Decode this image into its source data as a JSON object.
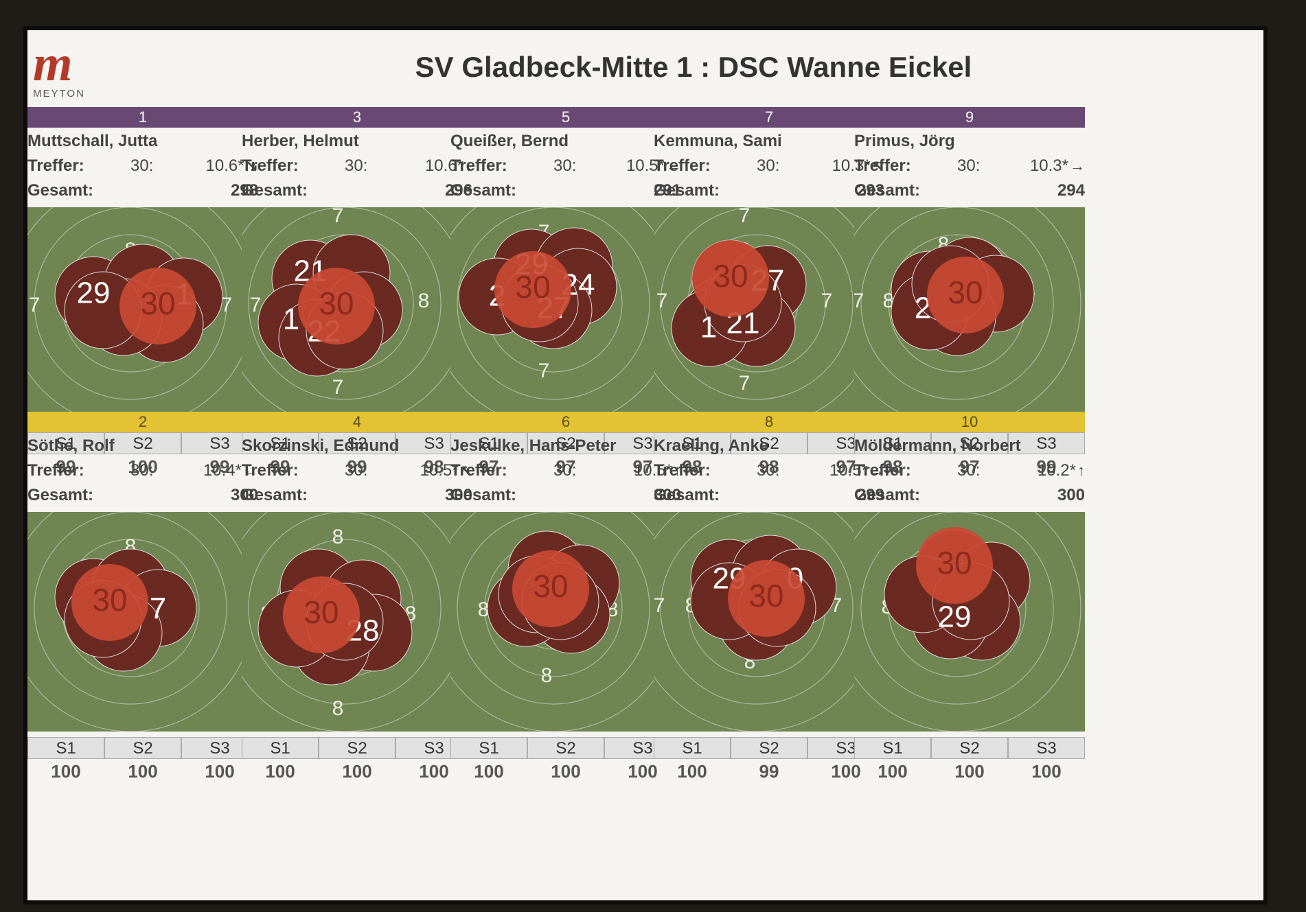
{
  "header": {
    "title": "SV Gladbeck-Mitte 1 : DSC Wanne Eickel",
    "logo_text": "MEYTON"
  },
  "labels": {
    "treffer": "Treffer:",
    "gesamt": "Gesamt:",
    "shots_prefix": "30:"
  },
  "series_headers": [
    "S1",
    "S2",
    "S3"
  ],
  "colors": {
    "purple": "#6a4874",
    "gold": "#e3c233",
    "target": "#6f8552",
    "shot": "#6b2a21",
    "last_shot": "#c94a34"
  },
  "shooters": [
    {
      "lane": "1",
      "name": "Muttschall, Jutta",
      "last_shot": "10.6*",
      "direction_icon": "arrow-down-right-icon",
      "total": "298",
      "series": [
        "99",
        "100",
        "99"
      ],
      "last_label": "30",
      "shot_labels": [
        "29",
        "1"
      ],
      "ring_numbers": [
        "8",
        "7",
        "7"
      ],
      "bar": "purple"
    },
    {
      "lane": "3",
      "name": "Herber, Helmut",
      "last_shot": "10.6*",
      "direction_icon": "arrow-down-icon",
      "total": "296",
      "series": [
        "99",
        "99",
        "98"
      ],
      "last_label": "30",
      "shot_labels": [
        "21",
        "1",
        "22"
      ],
      "ring_numbers": [
        "7",
        "8",
        "7",
        "8",
        "7",
        "7"
      ],
      "bar": "purple"
    },
    {
      "lane": "5",
      "name": "Queißer, Bernd",
      "last_shot": "10.5*",
      "direction_icon": "arrow-left-icon",
      "total": "291",
      "series": [
        "97",
        "97",
        "97"
      ],
      "last_label": "30",
      "shot_labels": [
        "29",
        "24",
        "2",
        "27"
      ],
      "ring_numbers": [
        "7",
        "7"
      ],
      "bar": "purple"
    },
    {
      "lane": "7",
      "name": "Kemmuna, Sami",
      "last_shot": "10.3*",
      "direction_icon": "arrow-up-left-icon",
      "total": "293",
      "series": [
        "98",
        "98",
        "97"
      ],
      "last_label": "30",
      "shot_labels": [
        "27",
        "21",
        "1"
      ],
      "ring_numbers": [
        "7",
        "8",
        "7",
        "7",
        "7"
      ],
      "bar": "purple"
    },
    {
      "lane": "9",
      "name": "Primus, Jörg",
      "last_shot": "10.3*",
      "direction_icon": "arrow-right-icon",
      "total": "294",
      "series": [
        "98",
        "97",
        "99"
      ],
      "last_label": "30",
      "shot_labels": [
        "2"
      ],
      "ring_numbers": [
        "8",
        "7",
        "8",
        "7"
      ],
      "bar": "purple"
    },
    {
      "lane": "2",
      "name": "Söthe, Rolf",
      "last_shot": "10.4*",
      "direction_icon": "arrow-left-icon",
      "total": "300",
      "series": [
        "100",
        "100",
        "100"
      ],
      "last_label": "30",
      "shot_labels": [
        "7"
      ],
      "ring_numbers": [
        "8",
        "8"
      ],
      "bar": "gold"
    },
    {
      "lane": "4",
      "name": "Skorzinski, Edmund",
      "last_shot": "10.5*",
      "direction_icon": "arrow-up-left-icon",
      "total": "300",
      "series": [
        "100",
        "100",
        "100"
      ],
      "last_label": "30",
      "shot_labels": [
        "28"
      ],
      "ring_numbers": [
        "8",
        "8",
        "8",
        "8"
      ],
      "bar": "gold"
    },
    {
      "lane": "6",
      "name": "Jeskulke, Hans-Peter",
      "last_shot": "10.5*",
      "direction_icon": "arrow-up-icon",
      "total": "300",
      "series": [
        "100",
        "100",
        "100"
      ],
      "last_label": "30",
      "shot_labels": [],
      "ring_numbers": [
        "8",
        "8",
        "8"
      ],
      "bar": "gold"
    },
    {
      "lane": "8",
      "name": "Kraeling, Anke",
      "last_shot": "10.5*",
      "direction_icon": "arrow-right-icon",
      "total": "299",
      "series": [
        "100",
        "99",
        "100"
      ],
      "last_label": "30",
      "shot_labels": [
        "29",
        "0"
      ],
      "ring_numbers": [
        "7",
        "8",
        "7",
        "8"
      ],
      "bar": "gold"
    },
    {
      "lane": "10",
      "name": "Möldermann, Norbert",
      "last_shot": "10.2*",
      "direction_icon": "arrow-up-icon",
      "total": "300",
      "series": [
        "100",
        "100",
        "100"
      ],
      "last_label": "30",
      "shot_labels": [
        "29"
      ],
      "ring_numbers": [
        "8",
        "8"
      ],
      "bar": "gold"
    }
  ]
}
